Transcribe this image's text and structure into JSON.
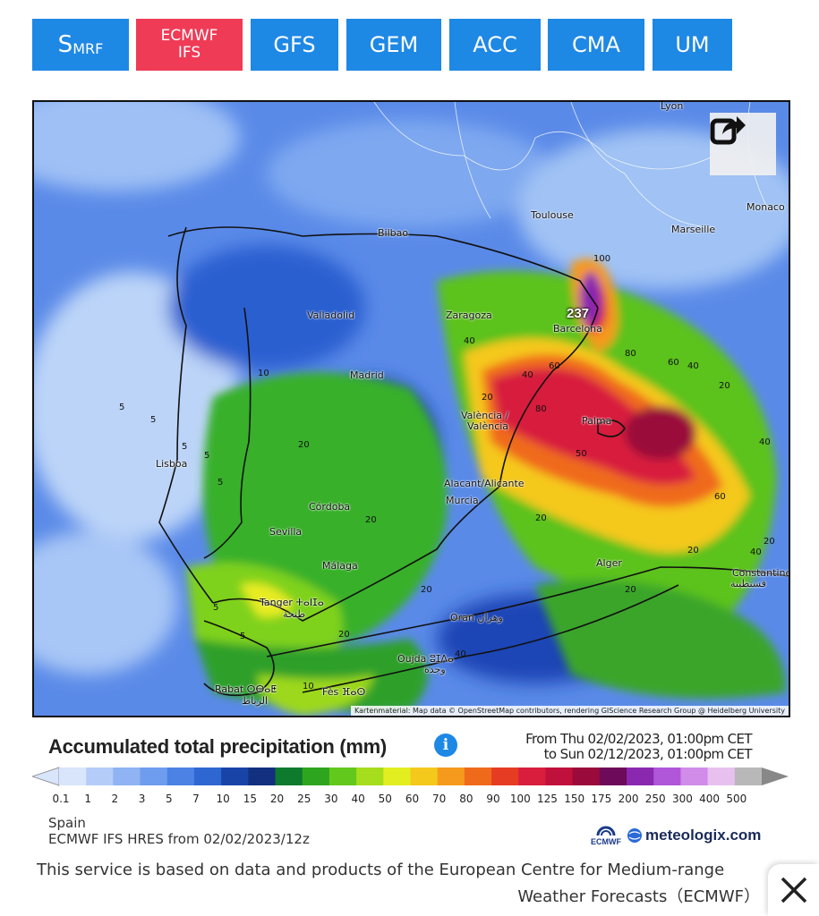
{
  "models": [
    {
      "label_big": "S",
      "label_small": "MRF"
    },
    {
      "label_line1": "ECMWF",
      "label_line2": "IFS"
    },
    {
      "label": "GFS"
    },
    {
      "label": "GEM"
    },
    {
      "label": "ACC"
    },
    {
      "label": "CMA"
    },
    {
      "label": "UM"
    }
  ],
  "colors": {
    "tab": "#1e88e5",
    "tab_active": "#ef3b56",
    "info": "#1e88e5"
  },
  "map": {
    "peak_value": "237",
    "credit": "Kartenmaterial: Map data © OpenStreetMap contributors, rendering GIScience Research Group @ Heidelberg University",
    "cities": {
      "lyon": "Lyon",
      "monaco": "Monaco",
      "marseille": "Marseille",
      "toulouse": "Toulouse",
      "bilbao": "Bilbao",
      "valladolid": "Valladolid",
      "zaragoza": "Zaragoza",
      "barcelona": "Barcelona",
      "madrid": "Madrid",
      "valencia1": "València /",
      "valencia2": "València",
      "palma": "Palma",
      "lisboa": "Lisboa",
      "alicante": "Alacant/Alicante",
      "murcia": "Murcia",
      "cordoba": "Córdoba",
      "sevilla": "Sevilla",
      "malaga": "Málaga",
      "alger": "Alger",
      "constantine1": "Constantine",
      "constantine2": "قسنطينة",
      "tanger": "Tanger ⵜⴰⵏⵊⴰ",
      "tanger2": "طنجة",
      "oran": "Oran وهران",
      "oujda": "Oujda ⵓⵊⴷⴰ",
      "oujda2": "وجدة",
      "rabat": "Rabat ⵔⴱⴰⵟ",
      "rabat2": "الرباط",
      "fes": "Fès ⴼⴰⵙ"
    },
    "contours": [
      "5",
      "5",
      "5",
      "10",
      "20",
      "40",
      "20",
      "40",
      "60",
      "80",
      "100",
      "80",
      "60",
      "40",
      "20",
      "40",
      "50",
      "60",
      "20",
      "20",
      "20",
      "40",
      "5",
      "5",
      "20",
      "20",
      "20",
      "40",
      "20",
      "5",
      "5",
      "10"
    ]
  },
  "legend": {
    "title": "Accumulated total precipitation (mm)",
    "from": "From Thu 02/02/2023, 01:00pm CET",
    "to": "to Sun 02/12/2023, 01:00pm CET",
    "ticks": [
      "0.1",
      "1",
      "2",
      "3",
      "5",
      "7",
      "10",
      "15",
      "20",
      "25",
      "30",
      "40",
      "50",
      "60",
      "70",
      "80",
      "90",
      "100",
      "125",
      "150",
      "175",
      "200",
      "250",
      "300",
      "400",
      "500"
    ],
    "colors": [
      "#d9e5fb",
      "#b4cdf8",
      "#8fb3f3",
      "#6e9cee",
      "#4b82e4",
      "#2e67d2",
      "#1844a8",
      "#12307f",
      "#0e7a2e",
      "#2ea51e",
      "#63c81c",
      "#a6dd1c",
      "#e3ee20",
      "#f5c81c",
      "#f59a1c",
      "#f06a1c",
      "#e63c24",
      "#d81e3c",
      "#c0103c",
      "#9a0a3a",
      "#6e0a5a",
      "#8a28b0",
      "#b056d8",
      "#d08ce8",
      "#e8c0f0",
      "#b8b8b8"
    ]
  },
  "meta": {
    "region": "Spain",
    "run": "ECMWF IFS HRES from 02/02/2023/12z"
  },
  "logos": {
    "ecmwf": "ECMWF",
    "meteologix": "meteologix.com"
  },
  "footer": {
    "line1": "This service is based on data and products of the European Centre for Medium-range",
    "line2": "Weather Forecasts（ECMWF）"
  }
}
